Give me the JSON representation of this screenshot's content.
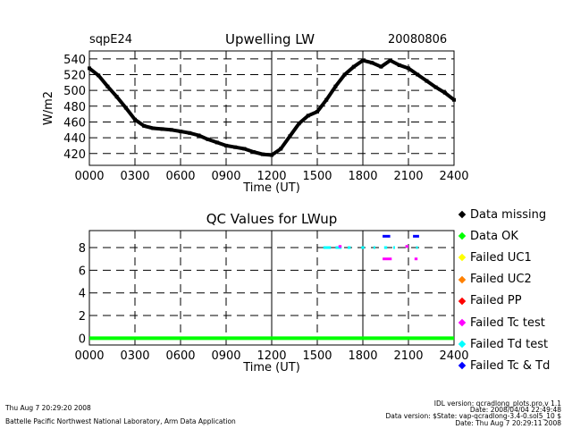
{
  "header": {
    "site": "sqpE24",
    "title": "Upwelling LW",
    "date": "20080806"
  },
  "chart_data": [
    {
      "type": "scatter",
      "title": "Upwelling LW",
      "xlabel": "Time (UT)",
      "ylabel": "W/m2",
      "xlim": [
        0,
        2400
      ],
      "ylim": [
        405,
        550
      ],
      "x_ticks": [
        0,
        300,
        600,
        900,
        1200,
        1500,
        1800,
        2100,
        2400
      ],
      "x_tick_labels": [
        "0000",
        "0300",
        "0600",
        "0900",
        "1200",
        "1500",
        "1800",
        "2100",
        "2400"
      ],
      "y_ticks": [
        420,
        440,
        460,
        480,
        500,
        520,
        540
      ],
      "y_tick_labels": [
        "420",
        "440",
        "460",
        "480",
        "500",
        "520",
        "540"
      ],
      "grid": true,
      "series": [
        {
          "name": "LWup",
          "color": "#000000",
          "x": [
            0,
            60,
            120,
            180,
            240,
            300,
            360,
            420,
            480,
            540,
            600,
            660,
            720,
            780,
            840,
            900,
            960,
            1020,
            1080,
            1140,
            1200,
            1260,
            1320,
            1380,
            1440,
            1500,
            1560,
            1620,
            1680,
            1740,
            1800,
            1860,
            1920,
            1980,
            2040,
            2100,
            2160,
            2220,
            2280,
            2340,
            2400
          ],
          "y": [
            528,
            519,
            505,
            492,
            478,
            463,
            455,
            452,
            451,
            450,
            448,
            446,
            443,
            438,
            434,
            430,
            428,
            426,
            422,
            419,
            418,
            426,
            442,
            458,
            468,
            473,
            488,
            505,
            520,
            530,
            538,
            535,
            530,
            538,
            532,
            528,
            520,
            512,
            504,
            497,
            488
          ]
        }
      ]
    },
    {
      "type": "scatter",
      "title": "QC Values for LWup",
      "xlabel": "Time (UT)",
      "ylabel": "",
      "xlim": [
        0,
        2400
      ],
      "ylim": [
        -0.6,
        9.5
      ],
      "x_ticks": [
        0,
        300,
        600,
        900,
        1200,
        1500,
        1800,
        2100,
        2400
      ],
      "x_tick_labels": [
        "0000",
        "0300",
        "0600",
        "0900",
        "1200",
        "1500",
        "1800",
        "2100",
        "2400"
      ],
      "y_ticks": [
        0,
        2,
        4,
        6,
        8
      ],
      "y_tick_labels": [
        "0",
        "2",
        "4",
        "6",
        "8"
      ],
      "grid": true,
      "series": [
        {
          "name": "Data OK",
          "color": "#00ff00",
          "segments": [
            [
              0,
              2400,
              0
            ]
          ]
        },
        {
          "name": "Failed Td test",
          "color": "#00ffff",
          "segments": [
            [
              1540,
              1590,
              8
            ],
            [
              1620,
              1660,
              8
            ],
            [
              1700,
              1720,
              8
            ],
            [
              1790,
              1810,
              8
            ],
            [
              1870,
              1880,
              8
            ],
            [
              1940,
              1960,
              8
            ],
            [
              2000,
              2010,
              8
            ],
            [
              2150,
              2160,
              8
            ]
          ]
        },
        {
          "name": "Failed Tc test",
          "color": "#ff00ff",
          "segments": [
            [
              1930,
              1990,
              7
            ],
            [
              2140,
              2160,
              7
            ],
            [
              1640,
              1660,
              8.1
            ],
            [
              2080,
              2100,
              8.1
            ]
          ]
        },
        {
          "name": "Failed Tc & Td",
          "color": "#0000ff",
          "segments": [
            [
              1930,
              1980,
              9
            ],
            [
              2130,
              2170,
              9
            ]
          ]
        }
      ]
    }
  ],
  "legend": {
    "items": [
      {
        "label": "Data missing",
        "color": "#000000"
      },
      {
        "label": "Data OK",
        "color": "#00ff00"
      },
      {
        "label": "Failed UC1",
        "color": "#ffff00"
      },
      {
        "label": "Failed UC2",
        "color": "#ff8000"
      },
      {
        "label": "Failed PP",
        "color": "#ff0000"
      },
      {
        "label": "Failed Tc test",
        "color": "#ff00ff"
      },
      {
        "label": "Failed Td test",
        "color": "#00ffff"
      },
      {
        "label": "Failed Tc & Td",
        "color": "#0000ff"
      }
    ]
  },
  "footer": {
    "timestamp": "Thu Aug  7 20:29:20 2008",
    "lab": "Battelle Pacific Northwest National Laboratory, Arm Data Application",
    "idl_version": "IDL version: qcradlong_plots.pro,v 1.1",
    "idl_date": "Date: 2008/04/04 22:49:48",
    "data_version": "Data version: $State: vap-qcradlong-3.4-0.sol5_10 $",
    "data_date": "Date: Thu Aug  7 20:29:11 2008"
  }
}
